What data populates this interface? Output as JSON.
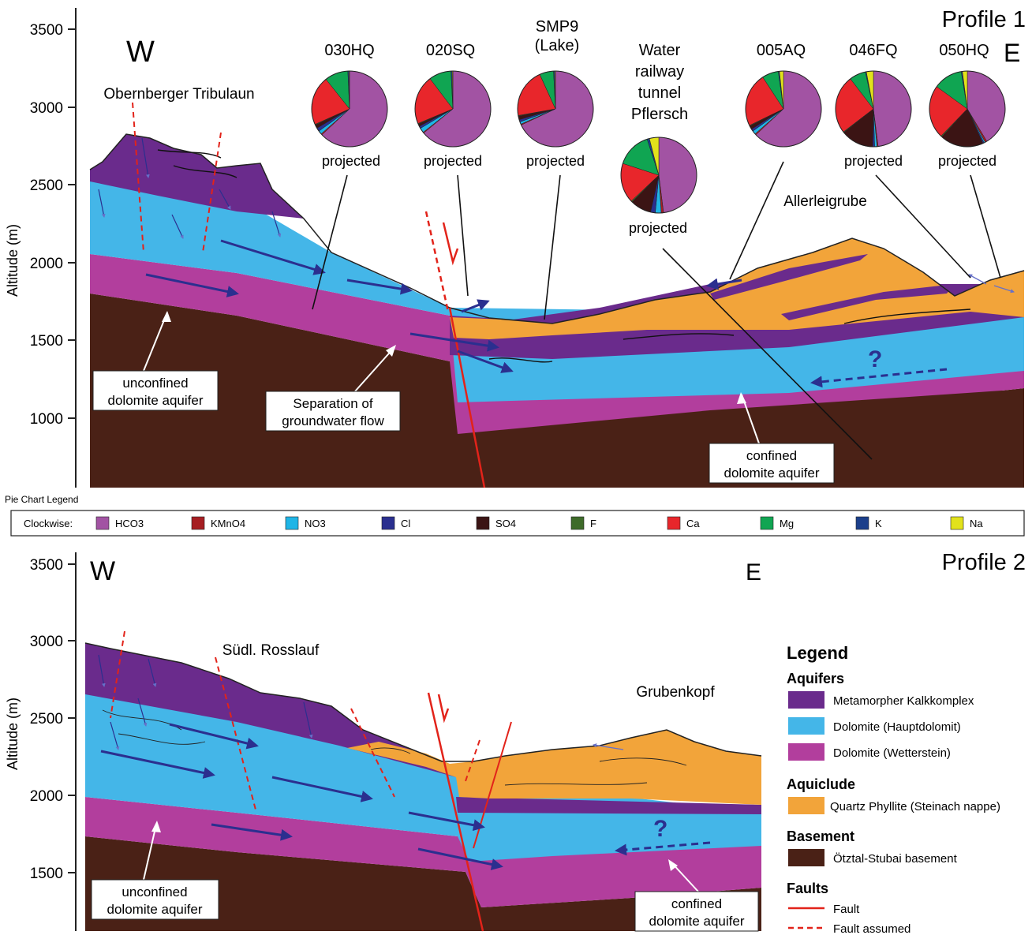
{
  "colors": {
    "kalk": "#6a2b8c",
    "haupt": "#44b6e8",
    "wetter": "#b23e9d",
    "phyllite": "#f2a43a",
    "basement": "#4a2116",
    "fault": "#e2231a",
    "arrow": "#2b2f8f",
    "HCO3": "#a253a3",
    "KMnO4": "#a61e22",
    "NO3": "#1fb5e6",
    "Cl": "#2a2f8f",
    "SO4": "#3b1414",
    "F": "#3e6b2a",
    "Ca": "#e8262b",
    "Mg": "#10a552",
    "K": "#1b3f8b",
    "Na": "#e2e21b"
  },
  "profile1": {
    "title": "Profile 1",
    "west": "W",
    "east": "E",
    "ylabel": "Altitude (m)",
    "ticks": [
      "3500",
      "3000",
      "2500",
      "2000",
      "1500",
      "1000"
    ],
    "peak_label": "Obernberger Tribulaun",
    "allerleigrube_label": "Allerleigrube",
    "unconfined_lines": [
      "unconfined",
      "dolomite aquifer"
    ],
    "separation_lines": [
      "Separation of",
      "groundwater flow"
    ],
    "confined_lines": [
      "confined",
      "dolomite aquifer"
    ],
    "question": "?",
    "samples": [
      {
        "label_lines": [
          "030HQ"
        ],
        "note": "projected",
        "values": {
          "HCO3": 63,
          "KMnO4": 0.5,
          "NO3": 1.5,
          "Cl": 1.5,
          "SO4": 1.5,
          "F": 0.3,
          "Ca": 21,
          "Mg": 10,
          "K": 0.5,
          "Na": 0.2
        }
      },
      {
        "label_lines": [
          "020SQ"
        ],
        "note": "projected",
        "values": {
          "HCO3": 64,
          "KMnO4": 0.4,
          "NO3": 2,
          "Cl": 1,
          "SO4": 1,
          "F": 0.3,
          "Ca": 21,
          "Mg": 9.5,
          "K": 0.5,
          "Na": 0.3
        }
      },
      {
        "label_lines": [
          "SMP9",
          "(Lake)"
        ],
        "note": "projected",
        "values": {
          "HCO3": 68,
          "KMnO4": 0.4,
          "NO3": 1,
          "Cl": 1,
          "SO4": 1.5,
          "F": 0.3,
          "Ca": 21,
          "Mg": 6,
          "K": 0.5,
          "Na": 0.3
        }
      },
      {
        "label_lines": [
          "Water",
          "railway",
          "tunnel",
          "Pflersch"
        ],
        "note": "projected",
        "values": {
          "HCO3": 48,
          "KMnO4": 1,
          "NO3": 2.5,
          "Cl": 2,
          "SO4": 9,
          "F": 0.5,
          "Ca": 17,
          "Mg": 15,
          "K": 1,
          "Na": 4
        }
      },
      {
        "label_lines": [
          "005AQ"
        ],
        "note": "",
        "values": {
          "HCO3": 63,
          "KMnO4": 0.5,
          "NO3": 1.5,
          "Cl": 1,
          "SO4": 1.5,
          "F": 0.3,
          "Ca": 23,
          "Mg": 7,
          "K": 0.5,
          "Na": 1.7
        }
      },
      {
        "label_lines": [
          "046FQ"
        ],
        "note": "projected",
        "values": {
          "HCO3": 48,
          "KMnO4": 0.5,
          "NO3": 1,
          "Cl": 0.8,
          "SO4": 14,
          "F": 0.3,
          "Ca": 25,
          "Mg": 7,
          "K": 0.4,
          "Na": 3
        }
      },
      {
        "label_lines": [
          "050HQ"
        ],
        "note": "projected",
        "values": {
          "HCO3": 40,
          "KMnO4": 0.8,
          "NO3": 0.5,
          "Cl": 0.5,
          "SO4": 18,
          "F": 0.4,
          "Ca": 22,
          "Mg": 12,
          "K": 0.5,
          "Na": 2
        }
      }
    ]
  },
  "pie_legend": {
    "title": "Pie Chart Legend",
    "prefix": "Clockwise:",
    "items": [
      "HCO3",
      "KMnO4",
      "NO3",
      "Cl",
      "SO4",
      "F",
      "Ca",
      "Mg",
      "K",
      "Na"
    ]
  },
  "profile2": {
    "title": "Profile 2",
    "west": "W",
    "east": "E",
    "ylabel": "Altitude (m)",
    "ticks": [
      "3500",
      "3000",
      "2500",
      "2000",
      "1500"
    ],
    "peak_label": "Südl. Rosslauf",
    "grubenkopf_label": "Grubenkopf",
    "unconfined_lines": [
      "unconfined",
      "dolomite aquifer"
    ],
    "confined_lines": [
      "confined",
      "dolomite aquifer"
    ],
    "question": "?"
  },
  "legend": {
    "title": "Legend",
    "aquifers_heading": "Aquifers",
    "aquifers": [
      "Metamorpher Kalkkomplex",
      "Dolomite (Hauptdolomit)",
      "Dolomite (Wetterstein)"
    ],
    "aquiclude_heading": "Aquiclude",
    "aquiclude": "Quartz Phyllite (Steinach nappe)",
    "basement_heading": "Basement",
    "basement": "Ötztal-Stubai basement",
    "faults_heading": "Faults",
    "fault": "Fault",
    "fault_assumed": "Fault assumed"
  }
}
